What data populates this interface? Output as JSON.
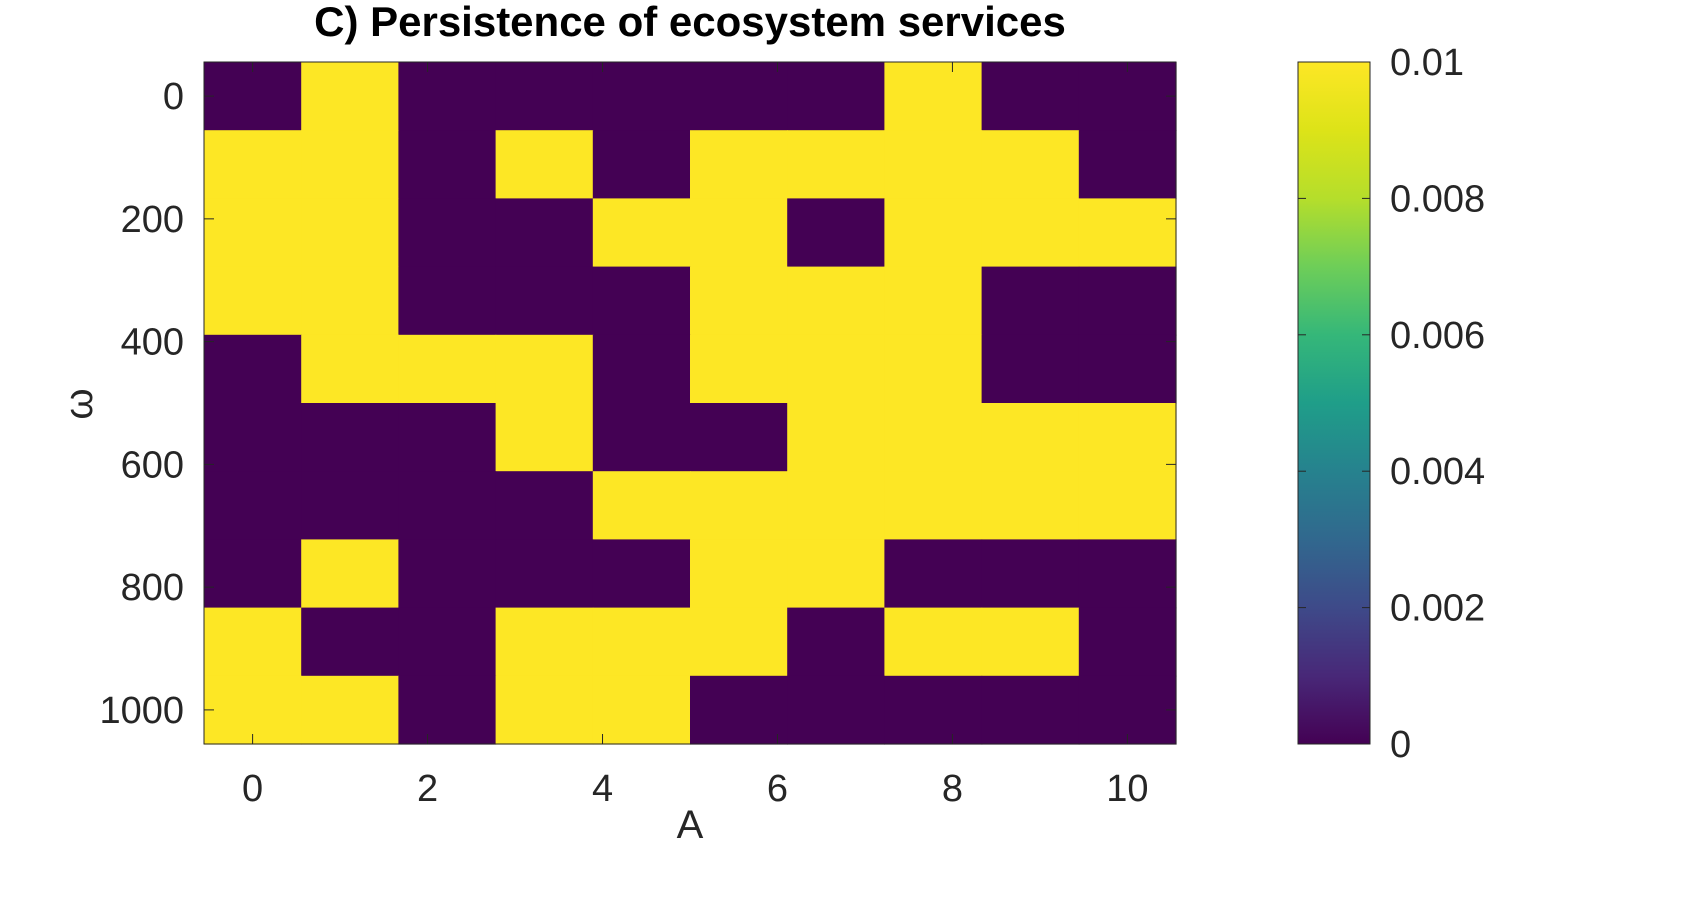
{
  "chart_data": {
    "type": "heatmap",
    "title": "C) Persistence of ecosystem services",
    "xlabel": "A",
    "ylabel": "ω",
    "x_categories": [
      "0",
      "1.1",
      "2.2",
      "3.3",
      "4.4",
      "5.6",
      "6.7",
      "7.8",
      "8.9",
      "10"
    ],
    "y_categories": [
      "0",
      "111",
      "222",
      "333",
      "444",
      "556",
      "667",
      "778",
      "889",
      "1000"
    ],
    "x_ticks": [
      "0",
      "2",
      "4",
      "6",
      "8",
      "10"
    ],
    "y_ticks": [
      "0",
      "200",
      "400",
      "600",
      "800",
      "1000"
    ],
    "values": [
      [
        0,
        0.01,
        0,
        0,
        0,
        0,
        0,
        0.01,
        0,
        0
      ],
      [
        0.01,
        0.01,
        0,
        0.01,
        0,
        0.01,
        0.01,
        0.01,
        0.01,
        0
      ],
      [
        0.01,
        0.01,
        0,
        0,
        0.01,
        0.01,
        0,
        0.01,
        0.01,
        0.01
      ],
      [
        0.01,
        0.01,
        0,
        0,
        0,
        0.01,
        0.01,
        0.01,
        0,
        0
      ],
      [
        0,
        0.01,
        0.01,
        0.01,
        0,
        0.01,
        0.01,
        0.01,
        0,
        0
      ],
      [
        0,
        0,
        0,
        0.01,
        0,
        0,
        0.01,
        0.01,
        0.01,
        0.01
      ],
      [
        0,
        0,
        0,
        0,
        0.01,
        0.01,
        0.01,
        0.01,
        0.01,
        0.01
      ],
      [
        0,
        0.01,
        0,
        0,
        0,
        0.01,
        0.01,
        0,
        0,
        0
      ],
      [
        0.01,
        0,
        0,
        0.01,
        0.01,
        0.01,
        0,
        0.01,
        0.01,
        0
      ],
      [
        0.01,
        0.01,
        0,
        0.01,
        0.01,
        0,
        0,
        0,
        0,
        0
      ]
    ],
    "colorbar": {
      "min": 0,
      "max": 0.01,
      "ticks": [
        "0",
        "0.002",
        "0.004",
        "0.006",
        "0.008",
        "0.01"
      ],
      "colormap": "viridis"
    },
    "colors": {
      "low": "#440154",
      "high": "#fde725"
    }
  }
}
